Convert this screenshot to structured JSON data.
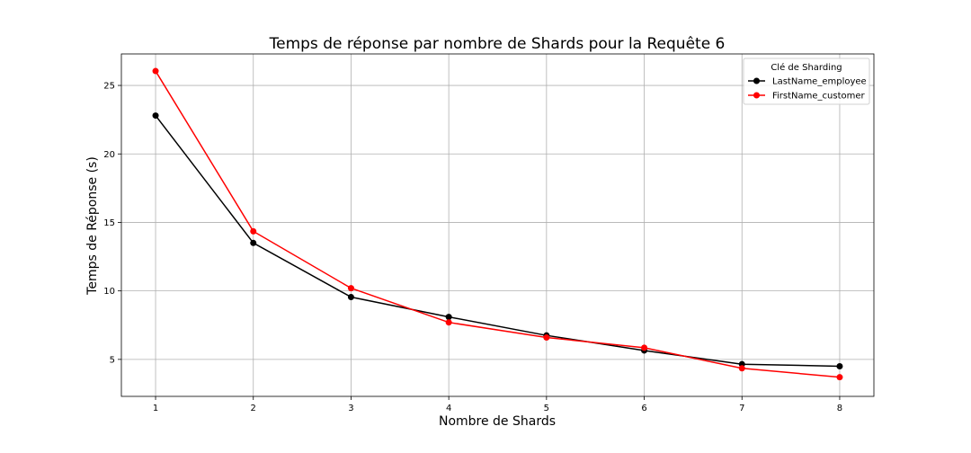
{
  "chart_data": {
    "type": "line",
    "title": "Temps de réponse par nombre de Shards pour la Requête 6",
    "xlabel": "Nombre de Shards",
    "ylabel": "Temps de Réponse (s)",
    "x": [
      1,
      2,
      3,
      4,
      5,
      6,
      7,
      8
    ],
    "xlim": [
      0.65,
      8.35
    ],
    "ylim": [
      2.3,
      27.3
    ],
    "xticks": [
      1,
      2,
      3,
      4,
      5,
      6,
      7,
      8
    ],
    "yticks": [
      5,
      10,
      15,
      20,
      25
    ],
    "grid": true,
    "legend": {
      "title": "Clé de Sharding",
      "placement": "top-right"
    },
    "series": [
      {
        "name": "LastName_employee",
        "color": "#000000",
        "marker": "circle",
        "values": [
          22.8,
          13.5,
          9.55,
          8.1,
          6.75,
          5.65,
          4.65,
          4.5
        ]
      },
      {
        "name": "FirstName_customer",
        "color": "#ff0000",
        "marker": "circle",
        "values": [
          26.05,
          14.35,
          10.2,
          7.7,
          6.6,
          5.85,
          4.35,
          3.7
        ]
      }
    ]
  }
}
